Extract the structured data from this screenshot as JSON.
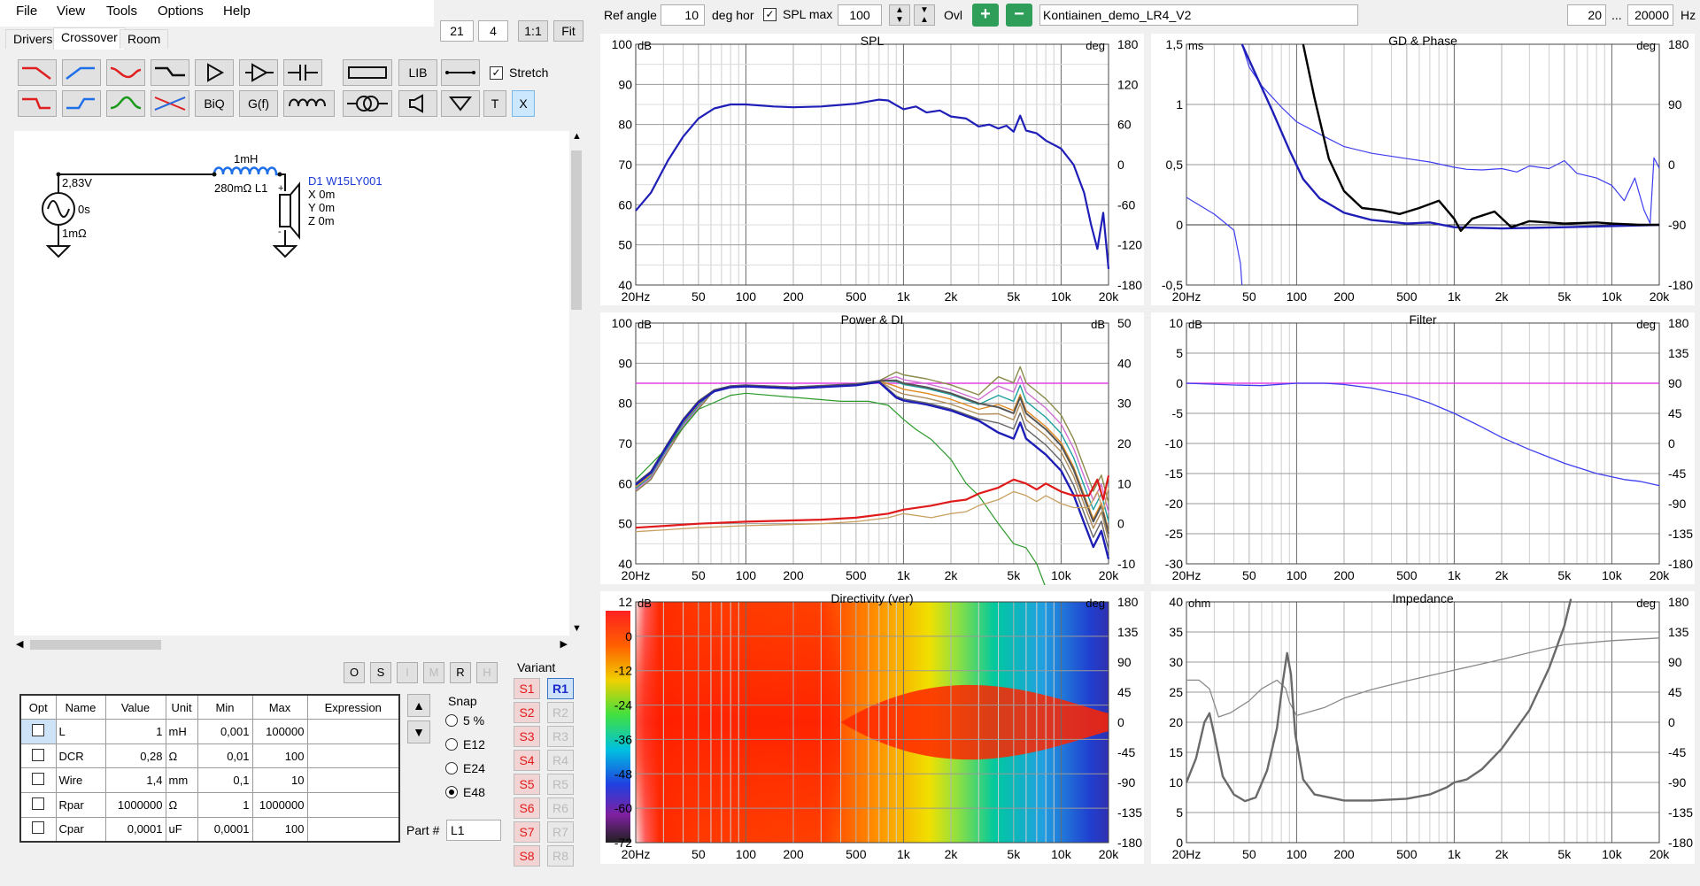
{
  "menu": [
    "File",
    "View",
    "Tools",
    "Options",
    "Help"
  ],
  "tabs": [
    "Drivers",
    "Crossover",
    "Room"
  ],
  "active_tab": "Crossover",
  "zoom": {
    "value1": "21",
    "value2": "4",
    "btn_1to1": "1:1",
    "btn_fit": "Fit"
  },
  "toolbar": {
    "lib": "LIB",
    "biq": "BiQ",
    "gf": "G(f)",
    "t": "T",
    "x": "X",
    "stretch": "Stretch",
    "stretch_checked": true
  },
  "schematic": {
    "source_voltage": "2,83V",
    "source_phase": "0s",
    "source_r": "1mΩ",
    "inductor_value": "1mH",
    "inductor_label": "280mΩ L1",
    "driver_name": "D1 W15LY001",
    "driver_x": "X 0m",
    "driver_y": "Y 0m",
    "driver_z": "Z 0m"
  },
  "tool_buttons": [
    "O",
    "S",
    "I",
    "M",
    "R",
    "H"
  ],
  "params": {
    "headers": [
      "Opt",
      "Name",
      "Value",
      "Unit",
      "Min",
      "Max",
      "Expression"
    ],
    "rows": [
      {
        "name": "L",
        "value": "1",
        "unit": "mH",
        "min": "0,001",
        "max": "100000"
      },
      {
        "name": "DCR",
        "value": "0,28",
        "unit": "Ω",
        "min": "0,01",
        "max": "100"
      },
      {
        "name": "Wire",
        "value": "1,4",
        "unit": "mm",
        "min": "0,1",
        "max": "10"
      },
      {
        "name": "Rpar",
        "value": "1000000",
        "unit": "Ω",
        "min": "1",
        "max": "1000000"
      },
      {
        "name": "Cpar",
        "value": "0,0001",
        "unit": "uF",
        "min": "0,0001",
        "max": "100"
      }
    ]
  },
  "snap": {
    "label": "Snap",
    "options": [
      "5 %",
      "E12",
      "E24",
      "E48"
    ],
    "selected": "E48"
  },
  "part": {
    "label": "Part #",
    "value": "L1"
  },
  "variant": {
    "label": "Variant",
    "s": [
      "S1",
      "S2",
      "S3",
      "S4",
      "S5",
      "S6",
      "S7",
      "S8"
    ],
    "r": [
      "R1",
      "R2",
      "R3",
      "R4",
      "R5",
      "R6",
      "R7",
      "R8"
    ],
    "selected_r": "R1"
  },
  "topbar": {
    "ref_angle_label": "Ref angle",
    "ref_angle_value": "10",
    "deg_hor": "deg hor",
    "spl_max_label": "SPL max",
    "spl_max_checked": true,
    "spl_max_value": "100",
    "ovl_label": "Ovl",
    "project_name": "Kontiainen_demo_LR4_V2",
    "freq_min": "20",
    "freq_sep": "...",
    "freq_max": "20000",
    "hz": "Hz"
  },
  "x_ticks": [
    "20Hz",
    "50",
    "100",
    "200",
    "500",
    "1k",
    "2k",
    "5k",
    "10k",
    "20k"
  ],
  "colors": {
    "blue": "#1f1fb8",
    "thin_blue": "#3d3df0",
    "magenta": "#e040e0",
    "panel_bg": "#ffffff"
  },
  "charts": {
    "spl": {
      "title": "SPL",
      "left_unit": "dB",
      "right_unit": "deg",
      "left_ticks": [
        "100",
        "90",
        "80",
        "70",
        "60",
        "50",
        "40"
      ],
      "right_ticks": [
        "180",
        "120",
        "60",
        "0",
        "-60",
        "-120",
        "-180"
      ]
    },
    "gd": {
      "title": "GD & Phase",
      "left_unit": "ms",
      "right_unit": "deg",
      "left_ticks": [
        "1,5",
        "1",
        "0,5",
        "0",
        "-0,5"
      ],
      "right_ticks": [
        "180",
        "90",
        "0",
        "-90",
        "-180"
      ]
    },
    "power": {
      "title": "Power & DI",
      "left_unit": "dB",
      "right_unit": "dB",
      "left_ticks": [
        "100",
        "90",
        "80",
        "70",
        "60",
        "50",
        "40"
      ],
      "right_ticks": [
        "50",
        "40",
        "30",
        "20",
        "10",
        "0",
        "-10"
      ]
    },
    "filter": {
      "title": "Filter",
      "left_unit": "dB",
      "right_unit": "deg",
      "left_ticks": [
        "10",
        "5",
        "0",
        "-5",
        "-10",
        "-15",
        "-20",
        "-25",
        "-30"
      ],
      "right_ticks": [
        "180",
        "135",
        "90",
        "45",
        "0",
        "-45",
        "-90",
        "-135",
        "-180"
      ]
    },
    "directivity": {
      "title": "Directivity (ver)",
      "left_unit": "dB",
      "right_unit": "deg",
      "left_ticks": [
        "12",
        "0",
        "-12",
        "-24",
        "-36",
        "-48",
        "-60",
        "-72"
      ],
      "right_ticks": [
        "180",
        "135",
        "90",
        "45",
        "0",
        "-45",
        "-90",
        "-135",
        "-180"
      ]
    },
    "impedance": {
      "title": "Impedance",
      "left_unit": "ohm",
      "right_unit": "deg",
      "left_ticks": [
        "40",
        "35",
        "30",
        "25",
        "20",
        "15",
        "10",
        "5",
        "0"
      ],
      "right_ticks": [
        "180",
        "135",
        "90",
        "45",
        "0",
        "-45",
        "-90",
        "-135",
        "-180"
      ]
    }
  }
}
